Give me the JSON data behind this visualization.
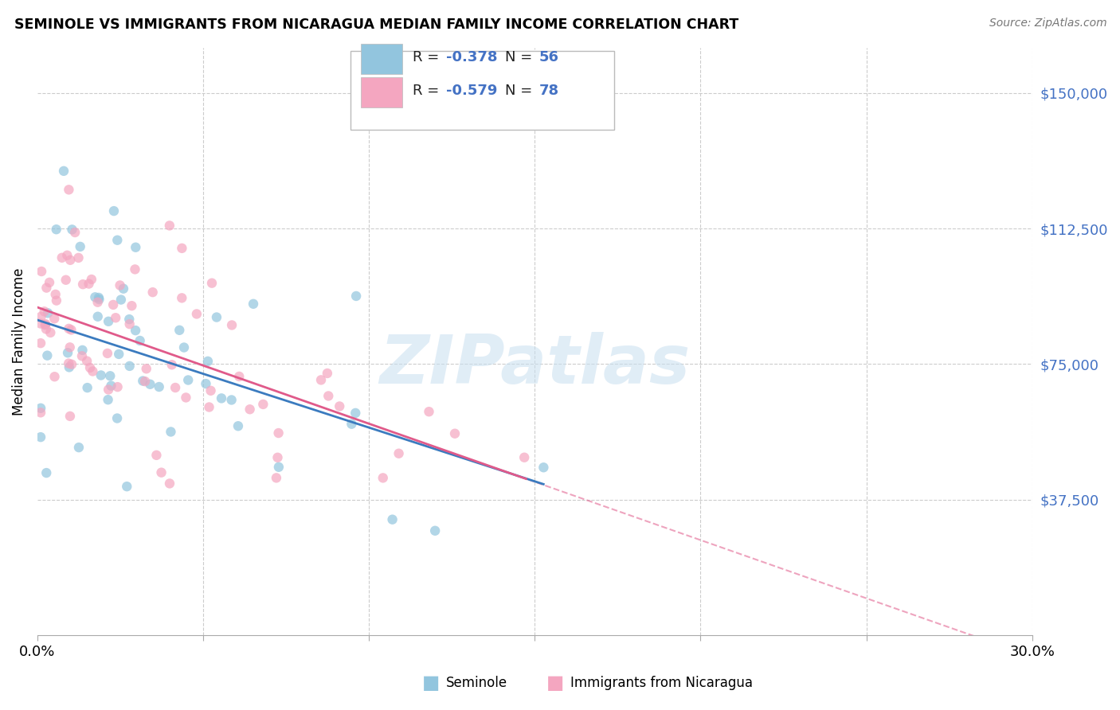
{
  "title": "SEMINOLE VS IMMIGRANTS FROM NICARAGUA MEDIAN FAMILY INCOME CORRELATION CHART",
  "source": "Source: ZipAtlas.com",
  "ylabel": "Median Family Income",
  "y_ticks": [
    37500,
    75000,
    112500,
    150000
  ],
  "y_tick_labels": [
    "$37,500",
    "$75,000",
    "$112,500",
    "$150,000"
  ],
  "xlim": [
    0.0,
    0.3
  ],
  "ylim": [
    0,
    162500
  ],
  "seminole_R": "-0.378",
  "seminole_N": "56",
  "nicaragua_R": "-0.579",
  "nicaragua_N": "78",
  "seminole_color": "#92c5de",
  "nicaragua_color": "#f4a6c0",
  "seminole_line_color": "#3b7bbf",
  "nicaragua_line_color": "#e05a8a",
  "label_color": "#4472c4",
  "watermark_color": "#c8dff0",
  "grid_color": "#cccccc",
  "background": "#ffffff"
}
